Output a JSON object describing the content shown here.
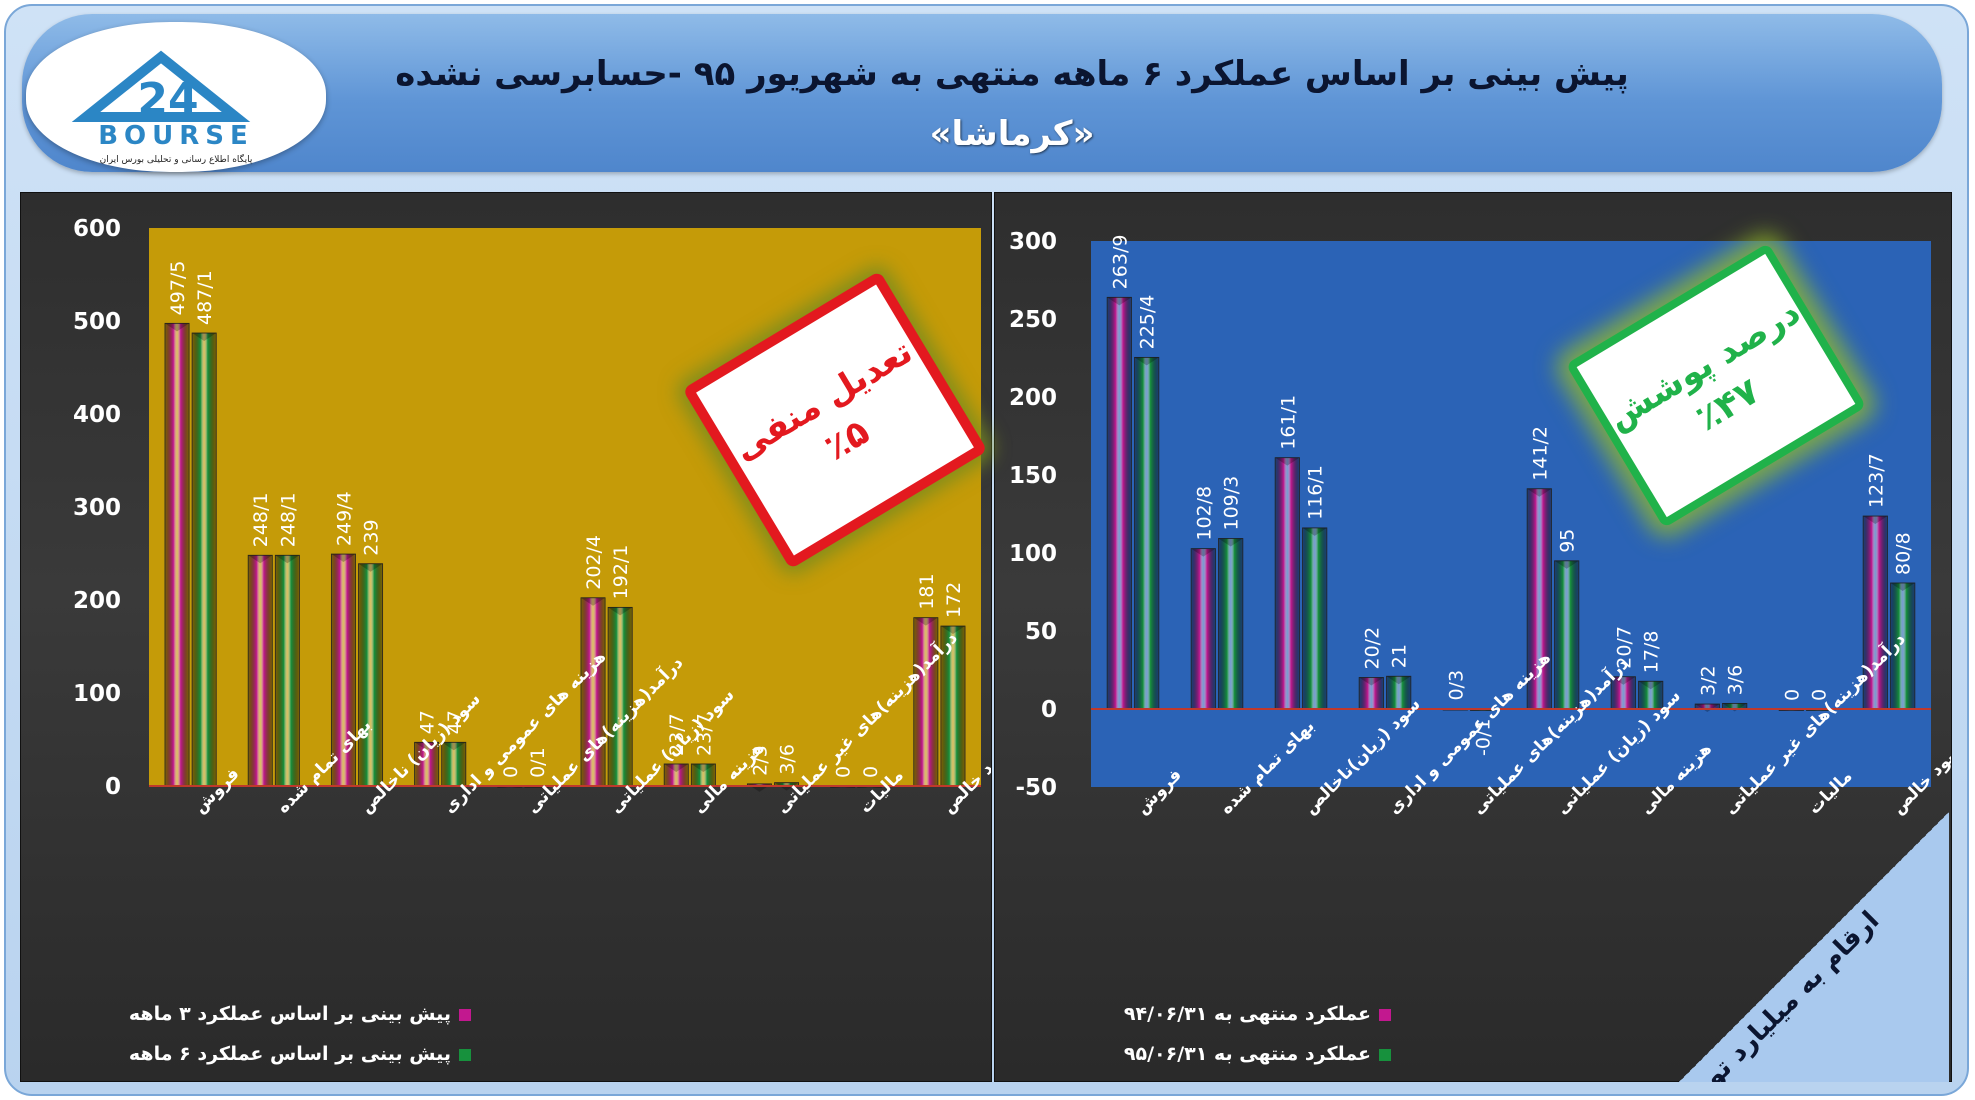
{
  "header": {
    "title": "پیش بینی بر اساس عملکرد ۶  ماهه منتهی به شهریور ۹۵ -حسابرسی نشده",
    "subtitle": "«کرماشا»",
    "logo_text": "BOURSE",
    "logo_number": "24",
    "logo_tagline": "پایگاه اطلاع رسانی و تحلیلی بورس ایران"
  },
  "colors": {
    "series_magenta": "#c2188f",
    "series_green": "#17913d",
    "left_plot_bg": "#c59b08",
    "right_plot_bg": "#2b63b6",
    "stamp_red": "#e3191f",
    "stamp_green": "#20b24a"
  },
  "stamps": {
    "left": {
      "line1": "تعدیل منفی",
      "line2": "٪۵"
    },
    "right": {
      "line1": "درصد پوشش",
      "line2": "٪۴۷"
    }
  },
  "corner_note": "ارقام به میلیارد تومان",
  "chart_data": [
    {
      "type": "bar",
      "categories": [
        "فروش",
        "بهای تمام شده",
        "سود (زیان) ناخالص",
        "هزینه های عمومی و اداری",
        "درآمد(هزینه)های عملیاتی",
        "سود (زیان) عملیاتی",
        "هزینه مالی",
        "درآمد(هزینه)های غیر عملیاتی",
        "مالیات",
        "سود خالص"
      ],
      "series": [
        {
          "name": "پیش بینی بر اساس عملکرد ۳ ماهه",
          "values": [
            497.5,
            248.1,
            249.4,
            47,
            0,
            202.4,
            23.7,
            2.3,
            0,
            181
          ],
          "labels": [
            "497/5",
            "248/1",
            "249/4",
            "47",
            "0",
            "202/4",
            "23/7",
            "2/3",
            "0",
            "181"
          ]
        },
        {
          "name": "پیش بینی بر اساس عملکرد ۶ ماهه",
          "values": [
            487.1,
            248.1,
            239,
            47,
            0.1,
            192.1,
            23.7,
            3.6,
            0,
            172
          ],
          "labels": [
            "487/1",
            "248/1",
            "239",
            "47",
            "0/1",
            "192/1",
            "23/7",
            "3/6",
            "0",
            "172"
          ]
        }
      ],
      "yticks": [
        "0",
        "100",
        "200",
        "300",
        "400",
        "500",
        "600"
      ],
      "ylim": [
        0,
        600
      ],
      "grid": false,
      "legend": "bottom"
    },
    {
      "type": "bar",
      "categories": [
        "فروش",
        "بهای تمام شده",
        "سود (زیان)ناخالص",
        "هزینه های عمومی و اداری",
        "درآمد(هزینه)های عملیاتی",
        "سود (زیان) عملیاتی",
        "هزینه مالی",
        "درآمد(هزینه)های غیر عملیاتی",
        "مالیات",
        "سود خالص"
      ],
      "series": [
        {
          "name": "عملکرد منتهی به ۹۴/۰۶/۳۱",
          "values": [
            263.9,
            102.8,
            161.1,
            20.2,
            0.3,
            141.2,
            20.7,
            3.2,
            0,
            123.7
          ],
          "labels": [
            "263/9",
            "102/8",
            "161/1",
            "20/2",
            "0/3",
            "141/2",
            "20/7",
            "3/2",
            "0",
            "123/7"
          ]
        },
        {
          "name": "عملکرد منتهی به ۹۵/۰۶/۳۱",
          "values": [
            225.4,
            109.3,
            116.1,
            21,
            -0.1,
            95,
            17.8,
            3.6,
            0,
            80.8
          ],
          "labels": [
            "225/4",
            "109/3",
            "116/1",
            "21",
            "-0/1",
            "95",
            "17/8",
            "3/6",
            "0",
            "80/8"
          ]
        }
      ],
      "yticks": [
        "-50",
        "0",
        "50",
        "100",
        "150",
        "200",
        "250",
        "300"
      ],
      "ylim": [
        -50,
        300
      ],
      "grid": false,
      "legend": "bottom"
    }
  ]
}
